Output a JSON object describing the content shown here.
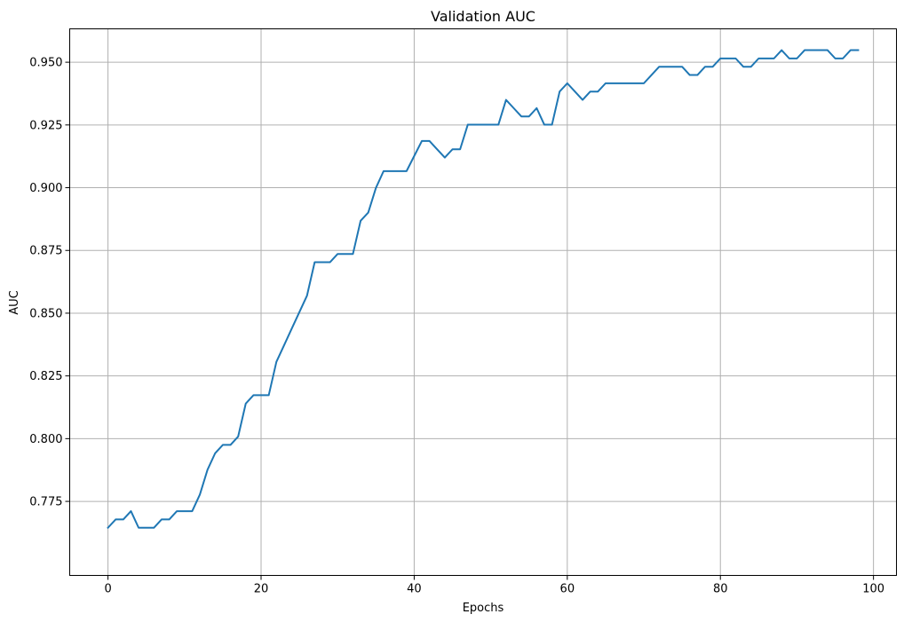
{
  "chart_data": {
    "type": "line",
    "title": "Validation AUC",
    "xlabel": "Epochs",
    "ylabel": "AUC",
    "xlim": [
      -5,
      103
    ],
    "ylim": [
      0.7455,
      0.9633
    ],
    "xticks": [
      0,
      20,
      40,
      60,
      80,
      100
    ],
    "yticks": [
      0.775,
      0.8,
      0.825,
      0.85,
      0.875,
      0.9,
      0.925,
      0.95
    ],
    "xtick_labels": [
      "0",
      "20",
      "40",
      "60",
      "80",
      "100"
    ],
    "ytick_labels": [
      "0.775",
      "0.800",
      "0.825",
      "0.850",
      "0.875",
      "0.900",
      "0.925",
      "0.950"
    ],
    "grid": true,
    "colors": {
      "line": "#1f77b4",
      "grid": "#b0b0b0"
    },
    "series": [
      {
        "x": [
          0,
          1,
          2,
          3,
          4,
          5,
          6,
          7,
          8,
          9,
          10,
          11,
          12,
          13,
          14,
          15,
          16,
          17,
          18,
          19,
          20,
          21,
          22,
          23,
          24,
          25,
          26,
          27,
          28,
          29,
          30,
          31,
          32,
          33,
          34,
          35,
          36,
          37,
          38,
          39,
          40,
          41,
          42,
          43,
          44,
          45,
          46,
          47,
          48,
          49,
          50,
          51,
          52,
          53,
          54,
          55,
          56,
          57,
          58,
          59,
          60,
          61,
          62,
          63,
          64,
          65,
          66,
          67,
          68,
          69,
          70,
          71,
          72,
          73,
          74,
          75,
          76,
          77,
          78,
          79,
          80,
          81,
          82,
          83,
          84,
          85,
          86,
          87,
          88,
          89,
          90,
          91,
          92,
          93,
          94,
          95,
          96,
          97,
          98
        ],
        "values": [
          0.7645,
          0.7678,
          0.7678,
          0.7711,
          0.7645,
          0.7645,
          0.7645,
          0.7678,
          0.7678,
          0.7711,
          0.7711,
          0.7711,
          0.7777,
          0.7876,
          0.7942,
          0.7975,
          0.7975,
          0.8008,
          0.814,
          0.8173,
          0.8173,
          0.8173,
          0.8306,
          0.8372,
          0.8438,
          0.8504,
          0.857,
          0.8703,
          0.8703,
          0.8703,
          0.8736,
          0.8736,
          0.8736,
          0.8868,
          0.8901,
          0.8999,
          0.9066,
          0.9066,
          0.9066,
          0.9066,
          0.9126,
          0.9186,
          0.9186,
          0.9153,
          0.912,
          0.9153,
          0.9153,
          0.9251,
          0.9251,
          0.9251,
          0.9251,
          0.9251,
          0.935,
          0.9317,
          0.9284,
          0.9284,
          0.9317,
          0.9251,
          0.9251,
          0.9383,
          0.9416,
          0.9383,
          0.935,
          0.9383,
          0.9383,
          0.9416,
          0.9416,
          0.9416,
          0.9416,
          0.9416,
          0.9416,
          0.9449,
          0.9482,
          0.9482,
          0.9482,
          0.9482,
          0.9449,
          0.9449,
          0.9482,
          0.9482,
          0.9515,
          0.9515,
          0.9515,
          0.9482,
          0.9482,
          0.9515,
          0.9515,
          0.9515,
          0.9548,
          0.9515,
          0.9515,
          0.9548,
          0.9548,
          0.9548,
          0.9548,
          0.9515,
          0.9515,
          0.9548,
          0.9548
        ]
      }
    ]
  }
}
